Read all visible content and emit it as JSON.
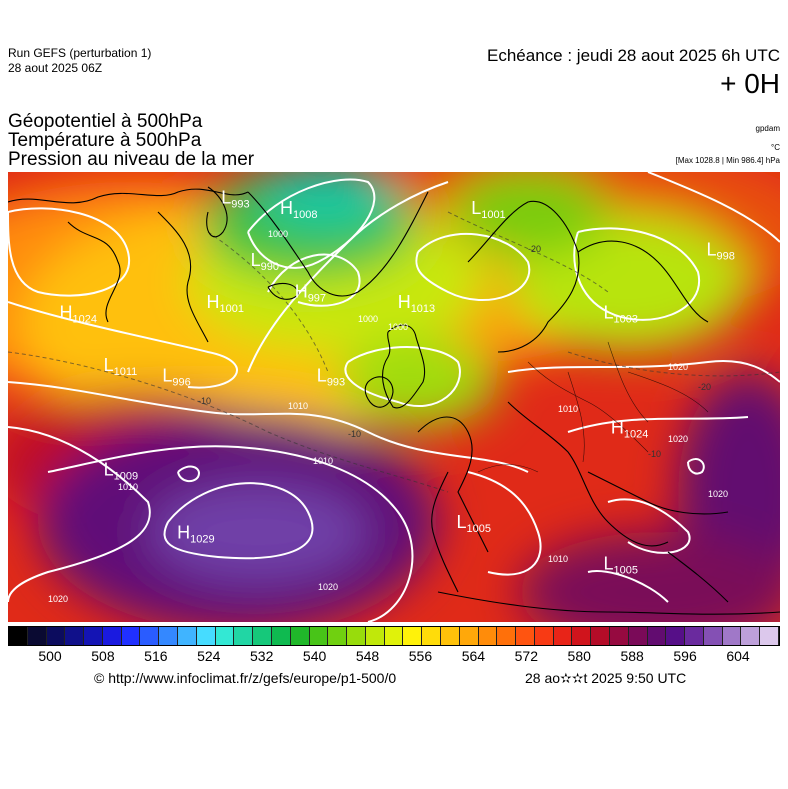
{
  "header": {
    "run_line1": "Run GEFS (perturbation 1)",
    "run_line2": "28 aout 2025 06Z",
    "echeance": "Echéance : jeudi 28 aout 2025 6h UTC",
    "offset": "+ 0H"
  },
  "titles": {
    "line1": "Géopotentiel à 500hPa",
    "line2": "Température à 500hPa",
    "line3": "Pression au niveau de la mer"
  },
  "units": {
    "geopotential": "gpdam",
    "temperature": "°C",
    "pressure_range": "[Max 1028.8 | Min 986.4] hPa"
  },
  "pressure_centers": [
    {
      "type": "H",
      "value": "1024",
      "lon": -48,
      "lat": 62
    },
    {
      "type": "L",
      "value": "1011",
      "lon": -42,
      "lat": 57
    },
    {
      "type": "L",
      "value": "996",
      "lon": -34,
      "lat": 56
    },
    {
      "type": "L",
      "value": "1009",
      "lon": -42,
      "lat": 47
    },
    {
      "type": "H",
      "value": "1029",
      "lon": -32,
      "lat": 41
    },
    {
      "type": "L",
      "value": "993",
      "lon": -26,
      "lat": 73
    },
    {
      "type": "H",
      "value": "1008",
      "lon": -18,
      "lat": 72
    },
    {
      "type": "L",
      "value": "990",
      "lon": -22,
      "lat": 67
    },
    {
      "type": "H",
      "value": "997",
      "lon": -16,
      "lat": 64
    },
    {
      "type": "H",
      "value": "1001",
      "lon": -28,
      "lat": 63
    },
    {
      "type": "L",
      "value": "1001",
      "lon": 8,
      "lat": 72
    },
    {
      "type": "H",
      "value": "1013",
      "lon": -2,
      "lat": 63
    },
    {
      "type": "L",
      "value": "998",
      "lon": 40,
      "lat": 68
    },
    {
      "type": "L",
      "value": "1003",
      "lon": 26,
      "lat": 62
    },
    {
      "type": "L",
      "value": "993",
      "lon": -13,
      "lat": 56
    },
    {
      "type": "H",
      "value": "1024",
      "lon": 27,
      "lat": 51
    },
    {
      "type": "L",
      "value": "1005",
      "lon": 6,
      "lat": 42
    },
    {
      "type": "L",
      "value": "1005",
      "lon": 26,
      "lat": 38
    }
  ],
  "isobar_labels": [
    "1000",
    "1000",
    "1000",
    "1010",
    "1010",
    "1010",
    "1020",
    "1020",
    "1020",
    "1020",
    "1020",
    "1010",
    "1010"
  ],
  "temperature_labels": [
    "-10",
    "-10",
    "-20",
    "-20",
    "-10"
  ],
  "colorbar": {
    "colors": [
      "#000000",
      "#0a0a32",
      "#0c0c5e",
      "#10108a",
      "#1414b4",
      "#1a1ae0",
      "#2030ff",
      "#2a5cff",
      "#3488ff",
      "#40b4ff",
      "#46dcff",
      "#33e8d4",
      "#21d6a4",
      "#16c87a",
      "#0fba50",
      "#20b82a",
      "#48c418",
      "#70d010",
      "#98dc0c",
      "#c0e80a",
      "#e0f20a",
      "#fff20a",
      "#ffdc0a",
      "#ffc20a",
      "#ffa80a",
      "#ff8c0a",
      "#ff700a",
      "#ff5410",
      "#f83a14",
      "#e82418",
      "#d0141c",
      "#b40c28",
      "#960a40",
      "#7a0a58",
      "#620c70",
      "#560f88",
      "#6a2a9e",
      "#8450b4",
      "#a078c8",
      "#bea0da",
      "#dcc8ec"
    ],
    "tick_labels": [
      "500",
      "508",
      "516",
      "524",
      "532",
      "540",
      "548",
      "556",
      "564",
      "572",
      "580",
      "588",
      "596",
      "604"
    ]
  },
  "footer": {
    "credit": "© http://www.infoclimat.fr/z/gefs/europe/p1-500/0",
    "stamp": "28 ao✫✫t 2025  9:50 UTC"
  }
}
